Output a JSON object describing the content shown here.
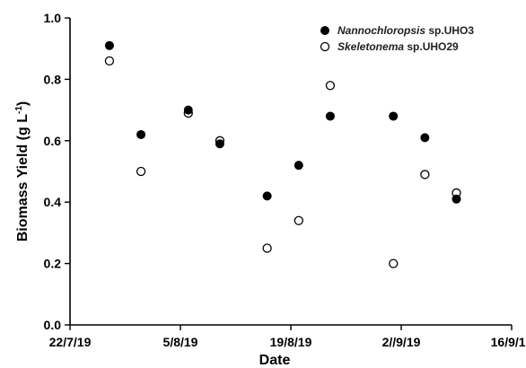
{
  "chart_data": {
    "type": "scatter",
    "xlabel": "Date",
    "ylabel_main": "Biomass Yield (g L",
    "ylabel_sup": "-1",
    "ylabel_close": ")",
    "xlim": [
      "22/7/19",
      "16/9/19"
    ],
    "ylim": [
      0.0,
      1.0
    ],
    "x_ticks": [
      {
        "date": "22/7/19",
        "label": "22/7/19"
      },
      {
        "date": "5/8/19",
        "label": "5/8/19"
      },
      {
        "date": "19/8/19",
        "label": "19/8/19"
      },
      {
        "date": "2/9/19",
        "label": "2//9/19"
      },
      {
        "date": "16/9/19",
        "label": "16/9/19"
      }
    ],
    "y_ticks": [
      {
        "value": 0.0,
        "label": "0.0"
      },
      {
        "value": 0.2,
        "label": "0.2"
      },
      {
        "value": 0.4,
        "label": "0.4"
      },
      {
        "value": 0.6,
        "label": "0.6"
      },
      {
        "value": 0.8,
        "label": "0.8"
      },
      {
        "value": 1.0,
        "label": "1.0"
      }
    ],
    "legend_position": "top-right",
    "grid": false,
    "series": [
      {
        "name_italic": "Nannochloropsis",
        "name_rest": " sp.UHO3",
        "marker": "filled-circle",
        "color": "#000000",
        "points": [
          {
            "x": "27/7/19",
            "y": 0.91
          },
          {
            "x": "31/7/19",
            "y": 0.62
          },
          {
            "x": "6/8/19",
            "y": 0.7
          },
          {
            "x": "10/8/19",
            "y": 0.59
          },
          {
            "x": "16/8/19",
            "y": 0.42
          },
          {
            "x": "20/8/19",
            "y": 0.52
          },
          {
            "x": "24/8/19",
            "y": 0.68
          },
          {
            "x": "1/9/19",
            "y": 0.68
          },
          {
            "x": "5/9/19",
            "y": 0.61
          },
          {
            "x": "9/9/19",
            "y": 0.41
          }
        ]
      },
      {
        "name_italic": "Skeletonema",
        "name_rest": " sp.UHO29",
        "marker": "open-circle",
        "color": "#000000",
        "points": [
          {
            "x": "27/7/19",
            "y": 0.86
          },
          {
            "x": "31/7/19",
            "y": 0.5
          },
          {
            "x": "6/8/19",
            "y": 0.69
          },
          {
            "x": "10/8/19",
            "y": 0.6
          },
          {
            "x": "16/8/19",
            "y": 0.25
          },
          {
            "x": "20/8/19",
            "y": 0.34
          },
          {
            "x": "24/8/19",
            "y": 0.78
          },
          {
            "x": "1/9/19",
            "y": 0.2
          },
          {
            "x": "5/9/19",
            "y": 0.49
          },
          {
            "x": "9/9/19",
            "y": 0.43
          }
        ]
      }
    ]
  }
}
